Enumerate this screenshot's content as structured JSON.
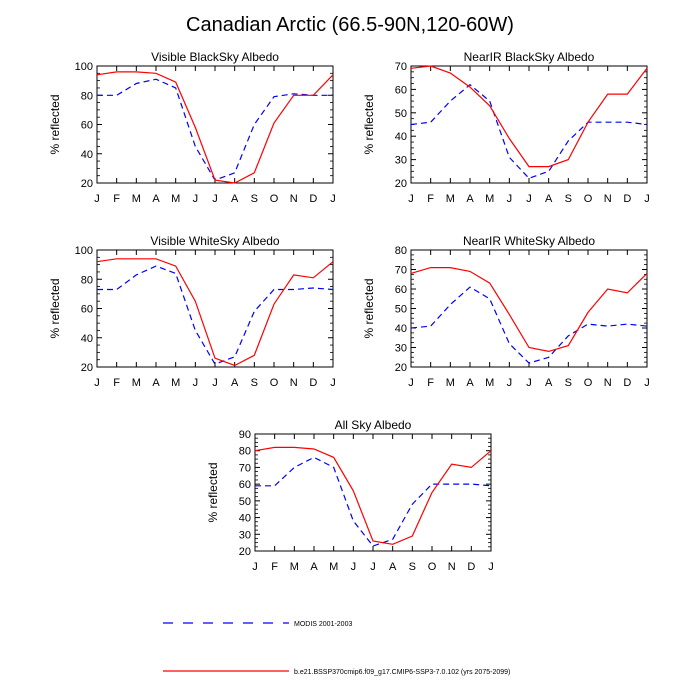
{
  "figure": {
    "title": "Canadian Arctic (66.5-90N,120-60W)"
  },
  "colors": {
    "modis": "#0000ff",
    "model": "#ff0000",
    "axis": "#000000"
  },
  "legend": {
    "modis_label": "MODIS 2001-2003",
    "model_label": "b.e21.BSSP370cmip6.f09_g17.CMIP6-SSP3-7.0.102 (yrs 2075-2099)"
  },
  "chart_data": [
    {
      "type": "line",
      "title": "Visible BlackSky Albedo",
      "ylabel": "% reflected",
      "categories": [
        "J",
        "F",
        "M",
        "A",
        "M",
        "J",
        "J",
        "A",
        "S",
        "O",
        "N",
        "D",
        "J"
      ],
      "ylim": [
        20,
        100
      ],
      "yticks": [
        20,
        40,
        60,
        80,
        100
      ],
      "grid": false,
      "series": [
        {
          "name": "MODIS 2001-2003",
          "style": "dashed",
          "values": [
            80,
            80,
            88,
            91,
            85,
            45,
            22,
            27,
            60,
            79,
            81,
            80,
            80
          ]
        },
        {
          "name": "b.e21.BSSP370cmip6.f09_g17.CMIP6-SSP3-7.0.102 (yrs 2075-2099)",
          "style": "solid",
          "values": [
            94,
            96,
            96,
            95,
            89,
            58,
            22,
            20,
            27,
            61,
            80,
            80,
            94
          ]
        }
      ]
    },
    {
      "type": "line",
      "title": "NearIR BlackSky Albedo",
      "ylabel": "% reflected",
      "categories": [
        "J",
        "F",
        "M",
        "A",
        "M",
        "J",
        "J",
        "A",
        "S",
        "O",
        "N",
        "D",
        "J"
      ],
      "ylim": [
        20,
        70
      ],
      "yticks": [
        20,
        30,
        40,
        50,
        60,
        70
      ],
      "grid": false,
      "series": [
        {
          "name": "MODIS 2001-2003",
          "style": "dashed",
          "values": [
            45,
            46,
            55,
            62,
            55,
            31,
            22,
            25,
            38,
            46,
            46,
            46,
            45
          ]
        },
        {
          "name": "b.e21.BSSP370cmip6.f09_g17.CMIP6-SSP3-7.0.102 (yrs 2075-2099)",
          "style": "solid",
          "values": [
            69,
            70,
            67,
            61,
            53,
            39,
            27,
            27,
            30,
            46,
            58,
            58,
            69
          ]
        }
      ]
    },
    {
      "type": "line",
      "title": "Visible WhiteSky Albedo",
      "ylabel": "% reflected",
      "categories": [
        "J",
        "F",
        "M",
        "A",
        "M",
        "J",
        "J",
        "A",
        "S",
        "O",
        "N",
        "D",
        "J"
      ],
      "ylim": [
        20,
        100
      ],
      "yticks": [
        20,
        40,
        60,
        80,
        100
      ],
      "grid": false,
      "series": [
        {
          "name": "MODIS 2001-2003",
          "style": "dashed",
          "values": [
            73,
            73,
            83,
            89,
            84,
            45,
            22,
            27,
            58,
            73,
            73,
            74,
            73
          ]
        },
        {
          "name": "b.e21.BSSP370cmip6.f09_g17.CMIP6-SSP3-7.0.102 (yrs 2075-2099)",
          "style": "solid",
          "values": [
            92,
            94,
            94,
            94,
            89,
            65,
            26,
            21,
            28,
            63,
            83,
            81,
            92
          ]
        }
      ]
    },
    {
      "type": "line",
      "title": "NearIR WhiteSky Albedo",
      "ylabel": "% reflected",
      "categories": [
        "J",
        "F",
        "M",
        "A",
        "M",
        "J",
        "J",
        "A",
        "S",
        "O",
        "N",
        "D",
        "J"
      ],
      "ylim": [
        20,
        80
      ],
      "yticks": [
        20,
        30,
        40,
        50,
        60,
        70,
        80
      ],
      "grid": false,
      "series": [
        {
          "name": "MODIS 2001-2003",
          "style": "dashed",
          "values": [
            40,
            41,
            52,
            61,
            55,
            32,
            22,
            25,
            36,
            42,
            41,
            42,
            41
          ]
        },
        {
          "name": "b.e21.BSSP370cmip6.f09_g17.CMIP6-SSP3-7.0.102 (yrs 2075-2099)",
          "style": "solid",
          "values": [
            68,
            71,
            71,
            69,
            63,
            47,
            30,
            28,
            31,
            48,
            60,
            58,
            68
          ]
        }
      ]
    },
    {
      "type": "line",
      "title": "All Sky Albedo",
      "ylabel": "% reflected",
      "categories": [
        "J",
        "F",
        "M",
        "A",
        "M",
        "J",
        "J",
        "A",
        "S",
        "O",
        "N",
        "D",
        "J"
      ],
      "ylim": [
        20,
        90
      ],
      "yticks": [
        20,
        30,
        40,
        50,
        60,
        70,
        80,
        90
      ],
      "grid": false,
      "series": [
        {
          "name": "MODIS 2001-2003",
          "style": "dashed",
          "values": [
            59,
            59,
            70,
            76,
            70,
            38,
            23,
            27,
            48,
            60,
            60,
            60,
            59
          ]
        },
        {
          "name": "b.e21.BSSP370cmip6.f09_g17.CMIP6-SSP3-7.0.102 (yrs 2075-2099)",
          "style": "solid",
          "values": [
            80,
            82,
            82,
            81,
            76,
            56,
            26,
            24,
            29,
            55,
            72,
            70,
            80
          ]
        }
      ]
    }
  ]
}
